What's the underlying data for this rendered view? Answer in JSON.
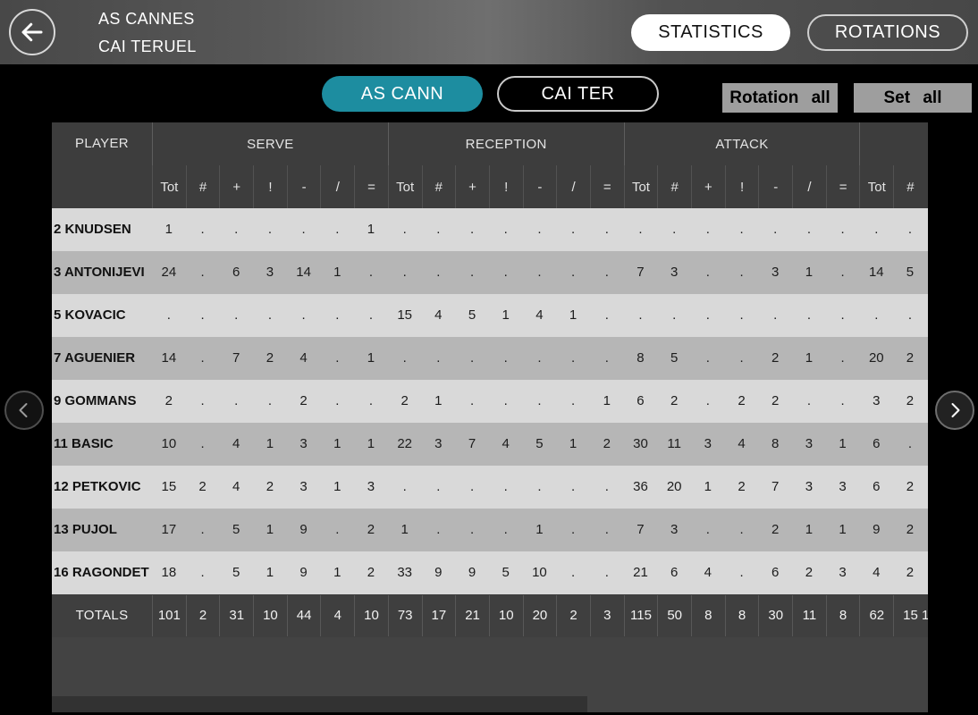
{
  "header": {
    "team1": "AS CANNES",
    "team2": "CAI TERUEL",
    "statistics_label": "STATISTICS",
    "rotations_label": "ROTATIONS"
  },
  "toolbar": {
    "team_tab_1": "AS CANN",
    "team_tab_2": "CAI TER",
    "rotation_all_label": "Rotation all",
    "set_all_label": "Set all"
  },
  "table": {
    "player_header": "PLAYER",
    "groups": [
      {
        "label": "SERVE",
        "cols": [
          "Tot",
          "#",
          "+",
          "!",
          "-",
          "/",
          "="
        ]
      },
      {
        "label": "RECEPTION",
        "cols": [
          "Tot",
          "#",
          "+",
          "!",
          "-",
          "/",
          "="
        ]
      },
      {
        "label": "ATTACK",
        "cols": [
          "Tot",
          "#",
          "+",
          "!",
          "-",
          "/",
          "="
        ]
      },
      {
        "label": "",
        "cols": [
          "Tot",
          "#"
        ]
      }
    ],
    "rows": [
      {
        "player": "2 KNUDSEN",
        "values": [
          "1",
          ".",
          ".",
          ".",
          ".",
          ".",
          "1",
          ".",
          ".",
          ".",
          ".",
          ".",
          ".",
          ".",
          ".",
          ".",
          ".",
          ".",
          ".",
          ".",
          ".",
          ".",
          "."
        ]
      },
      {
        "player": "3 ANTONIJEVI",
        "values": [
          "24",
          ".",
          "6",
          "3",
          "14",
          "1",
          ".",
          ".",
          ".",
          ".",
          ".",
          ".",
          ".",
          ".",
          "7",
          "3",
          ".",
          ".",
          "3",
          "1",
          ".",
          "14",
          "5"
        ]
      },
      {
        "player": "5 KOVACIC",
        "values": [
          ".",
          ".",
          ".",
          ".",
          ".",
          ".",
          ".",
          "15",
          "4",
          "5",
          "1",
          "4",
          "1",
          ".",
          ".",
          ".",
          ".",
          ".",
          ".",
          ".",
          ".",
          ".",
          "."
        ]
      },
      {
        "player": "7 AGUENIER",
        "values": [
          "14",
          ".",
          "7",
          "2",
          "4",
          ".",
          "1",
          ".",
          ".",
          ".",
          ".",
          ".",
          ".",
          ".",
          "8",
          "5",
          ".",
          ".",
          "2",
          "1",
          ".",
          "20",
          "2"
        ]
      },
      {
        "player": "9 GOMMANS",
        "values": [
          "2",
          ".",
          ".",
          ".",
          "2",
          ".",
          ".",
          "2",
          "1",
          ".",
          ".",
          ".",
          ".",
          "1",
          "6",
          "2",
          ".",
          "2",
          "2",
          ".",
          ".",
          "3",
          "2"
        ]
      },
      {
        "player": "11 BASIC",
        "values": [
          "10",
          ".",
          "4",
          "1",
          "3",
          "1",
          "1",
          "22",
          "3",
          "7",
          "4",
          "5",
          "1",
          "2",
          "30",
          "11",
          "3",
          "4",
          "8",
          "3",
          "1",
          "6",
          "."
        ]
      },
      {
        "player": "12 PETKOVIC",
        "values": [
          "15",
          "2",
          "4",
          "2",
          "3",
          "1",
          "3",
          ".",
          ".",
          ".",
          ".",
          ".",
          ".",
          ".",
          "36",
          "20",
          "1",
          "2",
          "7",
          "3",
          "3",
          "6",
          "2"
        ]
      },
      {
        "player": "13 PUJOL",
        "values": [
          "17",
          ".",
          "5",
          "1",
          "9",
          ".",
          "2",
          "1",
          ".",
          ".",
          ".",
          "1",
          ".",
          ".",
          "7",
          "3",
          ".",
          ".",
          "2",
          "1",
          "1",
          "9",
          "2"
        ]
      },
      {
        "player": "16 RAGONDET",
        "values": [
          "18",
          ".",
          "5",
          "1",
          "9",
          "1",
          "2",
          "33",
          "9",
          "9",
          "5",
          "10",
          ".",
          ".",
          "21",
          "6",
          "4",
          ".",
          "6",
          "2",
          "3",
          "4",
          "2"
        ]
      }
    ],
    "totals": {
      "label": "TOTALS",
      "values": [
        "101",
        "2",
        "31",
        "10",
        "44",
        "4",
        "10",
        "73",
        "17",
        "21",
        "10",
        "20",
        "2",
        "3",
        "115",
        "50",
        "8",
        "8",
        "30",
        "11",
        "8",
        "62",
        "15"
      ],
      "clipped_next_value": "1"
    }
  },
  "colors": {
    "accent_teal": "#1d8da0",
    "row_light": "#d9d9d9",
    "row_dark": "#b6b6b6",
    "header_dark": "#3d3d3d"
  }
}
